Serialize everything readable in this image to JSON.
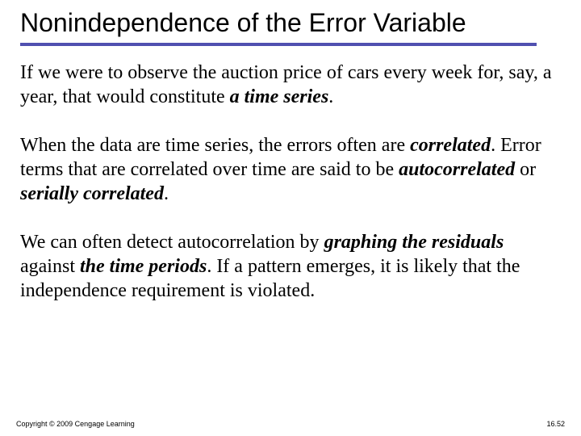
{
  "title": "Nonindependence of the Error Variable",
  "para1": {
    "t1": "If we were to observe the auction price of cars every week for, say, a year, that would constitute ",
    "em1": "a time series",
    "t2": "."
  },
  "para2": {
    "t1": "When the data are time series, the errors often are ",
    "em1": "correlated",
    "t2": ". Error terms that are correlated over time are said to be ",
    "em2": "autocorrelated",
    "t3": " or ",
    "em3": "serially correlated",
    "t4": "."
  },
  "para3": {
    "t1": "We can often detect autocorrelation by ",
    "em1": "graphing the residuals",
    "t2": " against ",
    "em2": "the time periods",
    "t3": ". If a pattern emerges, it is likely that the independence requirement is violated."
  },
  "footer": {
    "copyright": "Copyright © 2009 Cengage Learning",
    "page": "16.52"
  },
  "colors": {
    "underline": "#5050b0",
    "text": "#000000",
    "background": "#ffffff"
  }
}
